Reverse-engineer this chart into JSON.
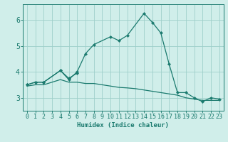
{
  "xlabel": "Humidex (Indice chaleur)",
  "x": [
    0,
    1,
    2,
    3,
    4,
    5,
    6,
    7,
    8,
    9,
    10,
    11,
    12,
    13,
    14,
    15,
    16,
    17,
    18,
    19,
    20,
    21,
    22,
    23
  ],
  "line1_x": [
    0,
    1,
    2,
    4,
    5,
    6,
    7,
    8,
    10,
    11,
    12,
    14,
    15,
    16,
    17,
    18,
    19,
    20,
    21,
    22,
    23
  ],
  "line1_y": [
    3.5,
    3.6,
    3.6,
    4.05,
    3.7,
    4.0,
    4.7,
    5.05,
    5.35,
    5.2,
    5.4,
    6.25,
    5.9,
    5.5,
    4.3,
    3.2,
    3.2,
    3.0,
    2.85,
    3.0,
    2.95
  ],
  "line2_x": [
    0,
    1,
    2,
    4,
    5,
    6
  ],
  "line2_y": [
    3.5,
    3.6,
    3.6,
    4.05,
    3.75,
    3.95
  ],
  "line3_x": [
    0,
    1,
    2,
    4,
    5,
    6,
    7,
    8,
    9,
    10,
    11,
    12,
    13,
    14,
    15,
    16,
    17,
    18,
    19,
    20,
    21,
    22,
    23
  ],
  "line3_y": [
    3.45,
    3.5,
    3.5,
    3.7,
    3.6,
    3.6,
    3.55,
    3.55,
    3.5,
    3.45,
    3.4,
    3.38,
    3.35,
    3.3,
    3.25,
    3.2,
    3.15,
    3.1,
    3.0,
    2.95,
    2.9,
    2.9,
    2.9
  ],
  "color": "#1a7a6e",
  "bg_color": "#d0eeea",
  "grid_color": "#9ecfca",
  "ylim": [
    2.5,
    6.6
  ],
  "yticks": [
    3,
    4,
    5,
    6
  ],
  "label_fontsize": 6.5,
  "tick_fontsize": 6.0
}
